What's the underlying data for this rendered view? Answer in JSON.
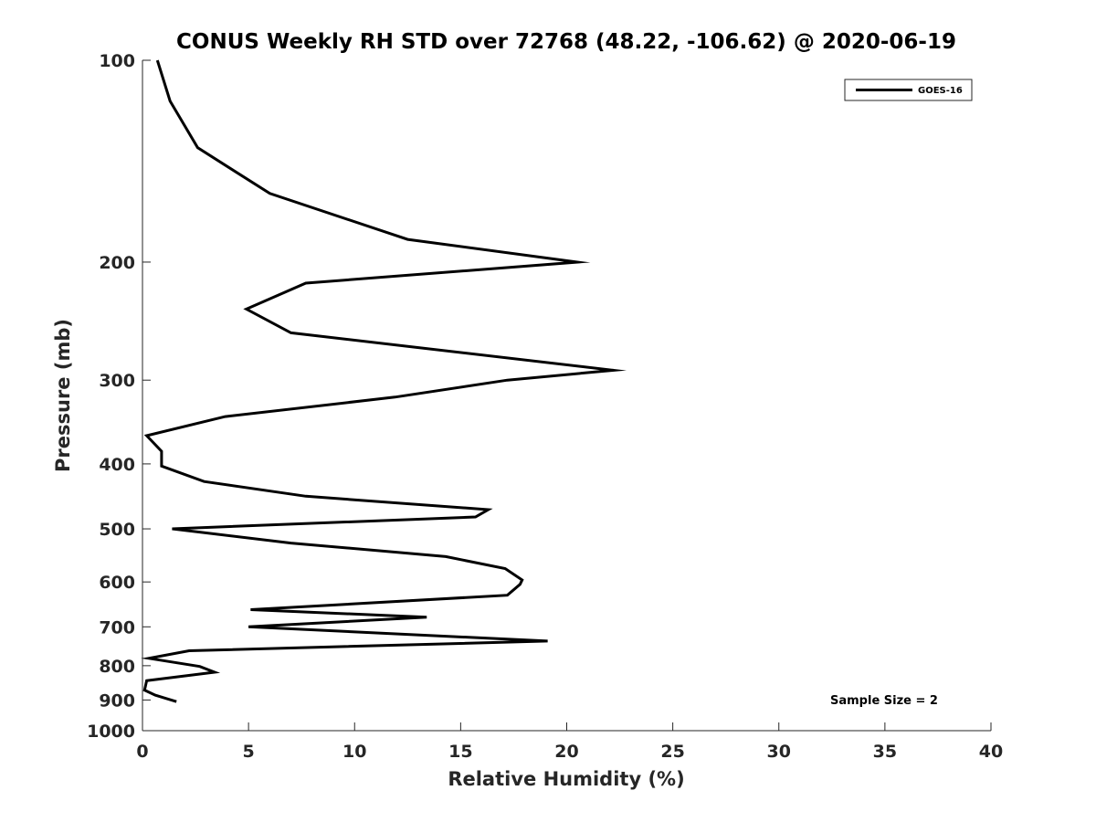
{
  "chart_data": {
    "type": "line",
    "title": "CONUS Weekly RH STD over 72768 (48.22, -106.62) @ 2020-06-19",
    "xlabel": "Relative Humidity (%)",
    "ylabel": "Pressure (mb)",
    "xlim": [
      0,
      40
    ],
    "ylim": [
      100,
      1000
    ],
    "y_scale": "log",
    "y_reversed": true,
    "x_ticks": [
      "0",
      "5",
      "10",
      "15",
      "20",
      "25",
      "30",
      "35",
      "40"
    ],
    "y_ticks": [
      "100",
      "200",
      "300",
      "400",
      "500",
      "600",
      "700",
      "800",
      "900",
      "1000"
    ],
    "grid": false,
    "legend": {
      "position": "top-right",
      "entries": [
        "GOES-16"
      ]
    },
    "annotation": "Sample Size = 2",
    "series": [
      {
        "name": "GOES-16",
        "color": "#000000",
        "points": [
          [
            0.7,
            100
          ],
          [
            1.3,
            115
          ],
          [
            2.6,
            135
          ],
          [
            6.0,
            158
          ],
          [
            12.5,
            185
          ],
          [
            20.5,
            200
          ],
          [
            7.7,
            215
          ],
          [
            4.9,
            235
          ],
          [
            7.0,
            255
          ],
          [
            22.2,
            290
          ],
          [
            17.2,
            300
          ],
          [
            11.9,
            318
          ],
          [
            3.9,
            340
          ],
          [
            0.2,
            363
          ],
          [
            0.9,
            383
          ],
          [
            0.9,
            403
          ],
          [
            2.9,
            425
          ],
          [
            7.7,
            447
          ],
          [
            16.3,
            468
          ],
          [
            15.7,
            480
          ],
          [
            1.4,
            500
          ],
          [
            7.0,
            525
          ],
          [
            14.3,
            550
          ],
          [
            17.1,
            573
          ],
          [
            17.9,
            596
          ],
          [
            17.8,
            605
          ],
          [
            17.2,
            628
          ],
          [
            5.1,
            660
          ],
          [
            13.4,
            677
          ],
          [
            5.0,
            700
          ],
          [
            19.1,
            735
          ],
          [
            2.2,
            760
          ],
          [
            0.3,
            780
          ],
          [
            2.7,
            802
          ],
          [
            3.4,
            818
          ],
          [
            0.2,
            842
          ],
          [
            0.1,
            870
          ],
          [
            0.6,
            885
          ],
          [
            1.6,
            905
          ]
        ]
      }
    ]
  }
}
